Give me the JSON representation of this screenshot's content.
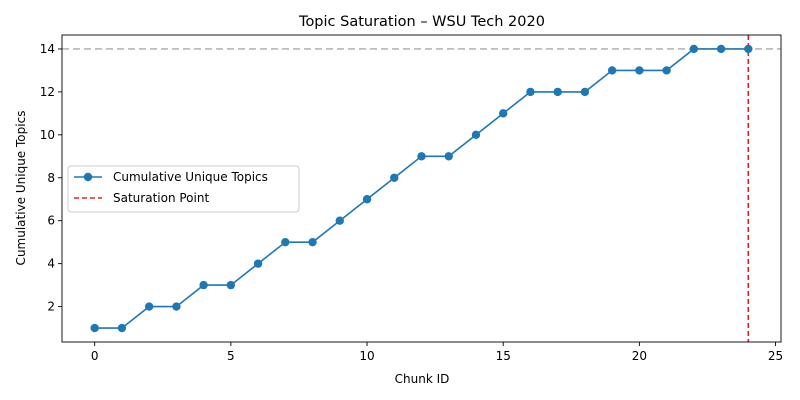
{
  "chart_data": {
    "type": "line",
    "title": "Topic Saturation – WSU Tech 2020",
    "xlabel": "Chunk ID",
    "ylabel": "Cumulative Unique Topics",
    "xlim": [
      -1.2,
      25.2
    ],
    "ylim": [
      0.35,
      14.65
    ],
    "xticks": [
      0,
      5,
      10,
      15,
      20,
      25
    ],
    "yticks": [
      2,
      4,
      6,
      8,
      10,
      12,
      14
    ],
    "grid": false,
    "legend_position": "center-left",
    "series": [
      {
        "name": "Cumulative Unique Topics",
        "color": "#1f77b4",
        "marker": "circle",
        "x": [
          0,
          1,
          2,
          3,
          4,
          5,
          6,
          7,
          8,
          9,
          10,
          11,
          12,
          13,
          14,
          15,
          16,
          17,
          18,
          19,
          20,
          21,
          22,
          23,
          24
        ],
        "values": [
          1,
          1,
          2,
          2,
          3,
          3,
          4,
          5,
          5,
          6,
          7,
          8,
          9,
          9,
          10,
          11,
          12,
          12,
          12,
          13,
          13,
          13,
          14,
          14,
          14
        ]
      }
    ],
    "reference_lines": [
      {
        "name": "Saturation Point",
        "orientation": "vertical",
        "x": 24,
        "color": "#d62728",
        "style": "dashed",
        "in_legend": true
      },
      {
        "name": "",
        "orientation": "horizontal",
        "y": 14,
        "color": "#aaaaaa",
        "style": "dashed",
        "in_legend": false
      }
    ]
  }
}
